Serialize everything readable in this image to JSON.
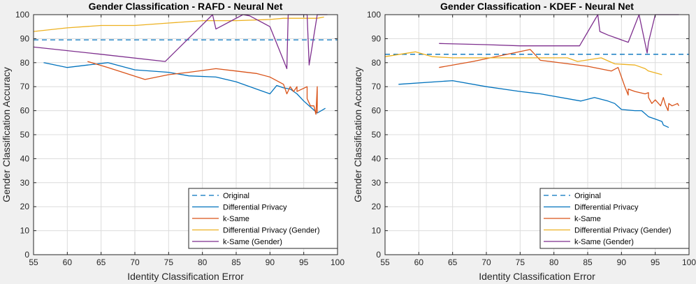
{
  "chart_data": [
    {
      "type": "line",
      "title": "Gender Classification - RAFD - Neural Net",
      "xlabel": "Identity Classification Error",
      "ylabel": "Gender Classification Accuracy",
      "xlim": [
        55,
        100
      ],
      "ylim": [
        0,
        100
      ],
      "xticks": [
        55,
        60,
        65,
        70,
        75,
        80,
        85,
        90,
        95,
        100
      ],
      "yticks": [
        0,
        10,
        20,
        30,
        40,
        50,
        60,
        70,
        80,
        90,
        100
      ],
      "grid": true,
      "legend_position": "bottom-right",
      "series": [
        {
          "name": "Original",
          "color": "#0072bd",
          "style": "dashed",
          "x": [
            55,
            100
          ],
          "y": [
            89.5,
            89.5
          ]
        },
        {
          "name": "Differential Privacy",
          "color": "#0072bd",
          "style": "solid",
          "x": [
            56.5,
            60,
            63,
            66,
            70,
            75,
            78,
            82,
            85,
            88,
            90,
            91,
            92,
            93,
            94,
            95,
            96,
            97,
            98.2
          ],
          "y": [
            80,
            78,
            79,
            80,
            77,
            76,
            74.5,
            74,
            72,
            69,
            67,
            70.5,
            69.5,
            69,
            67,
            64,
            61.5,
            59,
            61
          ]
        },
        {
          "name": "k-Same",
          "color": "#d95319",
          "style": "solid",
          "x": [
            63,
            66,
            71.5,
            75,
            78,
            82,
            85,
            88,
            90,
            92,
            92.5,
            93,
            93.5,
            94,
            94,
            95.5,
            95.5,
            96,
            96.5,
            96.8,
            97,
            97
          ],
          "y": [
            80.5,
            78,
            73,
            75,
            76,
            77.5,
            76.5,
            75.5,
            74,
            71,
            67,
            70,
            68,
            70,
            68,
            70,
            65,
            62,
            62,
            58.5,
            70,
            59
          ]
        },
        {
          "name": "Differential Privacy (Gender)",
          "color": "#edb120",
          "style": "solid",
          "x": [
            55,
            60,
            65,
            70,
            75,
            80,
            85,
            90,
            92,
            95,
            97,
            98
          ],
          "y": [
            93,
            94.5,
            95.5,
            95.5,
            96.5,
            97.5,
            97.5,
            98,
            98.5,
            98.5,
            98.5,
            99
          ]
        },
        {
          "name": "k-Same (Gender)",
          "color": "#7e2f8e",
          "style": "solid",
          "x": [
            55,
            65,
            74.5,
            81.5,
            82,
            86,
            87,
            90,
            92.5,
            92.7,
            95.5,
            95.8,
            97,
            97.2,
            98.5
          ],
          "y": [
            86.5,
            83.5,
            80.5,
            100,
            94,
            100,
            99.5,
            95,
            77.5,
            100,
            100,
            79,
            100,
            100,
            100
          ]
        }
      ]
    },
    {
      "type": "line",
      "title": "Gender Classification - KDEF - Neural Net",
      "xlabel": "Identity Classification Error",
      "ylabel": "Gender Classification Accuracy",
      "xlim": [
        55,
        100
      ],
      "ylim": [
        0,
        100
      ],
      "xticks": [
        55,
        60,
        65,
        70,
        75,
        80,
        85,
        90,
        95,
        100
      ],
      "yticks": [
        0,
        10,
        20,
        30,
        40,
        50,
        60,
        70,
        80,
        90,
        100
      ],
      "grid": true,
      "legend_position": "bottom-right",
      "series": [
        {
          "name": "Original",
          "color": "#0072bd",
          "style": "dashed",
          "x": [
            55,
            100
          ],
          "y": [
            83.5,
            83.5
          ]
        },
        {
          "name": "Differential Privacy",
          "color": "#0072bd",
          "style": "solid",
          "x": [
            57,
            65,
            70,
            75,
            78,
            84,
            86,
            88,
            89,
            90,
            92,
            93,
            94,
            95,
            96,
            96.2,
            97
          ],
          "y": [
            71,
            72.5,
            70,
            68,
            67,
            64,
            65.5,
            64,
            63,
            60.5,
            60,
            60,
            57.5,
            56.5,
            55.5,
            54,
            53
          ]
        },
        {
          "name": "k-Same",
          "color": "#d95319",
          "style": "solid",
          "x": [
            63,
            68,
            76.5,
            78,
            85,
            88.5,
            89.5,
            90.5,
            91,
            91,
            92,
            93.5,
            94,
            94,
            94.5,
            95,
            95.8,
            96.2,
            96.5,
            96.9,
            97,
            97.5,
            98.3,
            98.5
          ],
          "y": [
            78,
            80.5,
            85.5,
            81,
            78.5,
            76.5,
            78,
            70,
            66.5,
            69,
            68,
            67,
            67.5,
            65.5,
            63,
            64.5,
            62,
            65.5,
            62.5,
            60,
            63,
            62,
            63,
            62
          ]
        },
        {
          "name": "Differential Privacy (Gender)",
          "color": "#edb120",
          "style": "solid",
          "x": [
            55,
            59.5,
            62,
            65,
            70,
            78,
            82,
            83.5,
            87,
            89,
            92,
            93.5,
            94,
            96
          ],
          "y": [
            82.5,
            84.5,
            82.5,
            82,
            82,
            82,
            82,
            80.5,
            82,
            79.5,
            79,
            77.5,
            76.5,
            75
          ]
        },
        {
          "name": "k-Same (Gender)",
          "color": "#7e2f8e",
          "style": "solid",
          "x": [
            63,
            70,
            75,
            80,
            83.8,
            86.5,
            86.8,
            88,
            91,
            92.6,
            93.8,
            94,
            95,
            95.5,
            98.5
          ],
          "y": [
            88,
            87.5,
            87,
            87,
            87,
            100,
            93,
            91.5,
            88.5,
            100,
            84,
            88.5,
            100,
            100,
            100
          ]
        }
      ]
    }
  ]
}
